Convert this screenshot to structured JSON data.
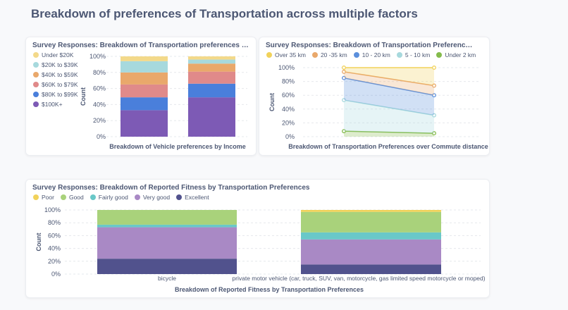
{
  "page": {
    "title": "Breakdown of preferences of Transportation across multiple factors"
  },
  "cards": {
    "income": {
      "title": "Survey Responses: Breakdown of Transportation preferences by Income"
    },
    "commute": {
      "title": "Survey Responses: Breakdown of Transportation Preferences over Commute distance"
    },
    "fitness": {
      "title": "Survey Responses: Breakdown of Reported Fitness by Transportation Preferences"
    }
  },
  "chart_data": [
    {
      "id": "income",
      "type": "bar",
      "stacked": true,
      "normalized": true,
      "title": "Survey Responses: Breakdown of Transportation preferences by Income",
      "xlabel": "Breakdown of Vehicle preferences by Income",
      "ylabel": "Count",
      "yticks": [
        "0%",
        "20%",
        "40%",
        "60%",
        "80%",
        "100%"
      ],
      "ylim": [
        0,
        100
      ],
      "legend_position": "left",
      "categories": [
        "",
        ""
      ],
      "series": [
        {
          "name": "$100K+",
          "color": "#7d5ab5",
          "values": [
            33,
            49
          ]
        },
        {
          "name": "$80K to $99K",
          "color": "#4a7fdb",
          "values": [
            16,
            17
          ]
        },
        {
          "name": "$60K to $79K",
          "color": "#e08a8a",
          "values": [
            16,
            15
          ]
        },
        {
          "name": "$40K to $59K",
          "color": "#e9a86b",
          "values": [
            15,
            10
          ]
        },
        {
          "name": "$20K to $39K",
          "color": "#a7d9dd",
          "values": [
            14,
            5
          ]
        },
        {
          "name": "Under $20K",
          "color": "#f3d98a",
          "values": [
            6,
            4
          ]
        }
      ],
      "legend_order": [
        "Under $20K",
        "$20K to $39K",
        "$40K to $59K",
        "$60K to $79K",
        "$80K to $99K",
        "$100K+"
      ]
    },
    {
      "id": "commute",
      "type": "area",
      "stacked": true,
      "normalized": true,
      "title": "Survey Responses: Breakdown of Transportation Preferences over Commute distance",
      "xlabel": "Breakdown of Transportation Preferences over Commute distance",
      "ylabel": "Count",
      "yticks": [
        "0%",
        "20%",
        "40%",
        "60%",
        "80%",
        "100%"
      ],
      "ylim": [
        0,
        100
      ],
      "legend_position": "top",
      "x": [
        "",
        ""
      ],
      "series": [
        {
          "name": "Under 2 km",
          "color": "#84bb4c",
          "values": [
            8,
            5
          ]
        },
        {
          "name": "5 - 10 km",
          "color": "#a7d9dd",
          "values": [
            45,
            26
          ]
        },
        {
          "name": "10 - 20 km",
          "color": "#5b8fdc",
          "values": [
            32,
            29
          ]
        },
        {
          "name": "20 -35 km",
          "color": "#e9a86b",
          "values": [
            9,
            14
          ]
        },
        {
          "name": "Over 35 km",
          "color": "#f1d25a",
          "values": [
            6,
            26
          ]
        }
      ],
      "legend_order": [
        "Over 35 km",
        "20 -35 km",
        "10 - 20 km",
        "5 - 10 km",
        "Under 2 km"
      ]
    },
    {
      "id": "fitness",
      "type": "bar",
      "stacked": true,
      "normalized": true,
      "title": "Survey Responses: Breakdown of Reported Fitness by Transportation Preferences",
      "xlabel": "Breakdown of Reported Fitness by Transportation Preferences",
      "ylabel": "Count",
      "yticks": [
        "0%",
        "20%",
        "40%",
        "60%",
        "80%",
        "100%"
      ],
      "ylim": [
        0,
        100
      ],
      "legend_position": "top",
      "categories": [
        "bicycle",
        "private motor vehicle (car, truck, SUV, van, motorcycle, gas limited speed motorcycle or moped)"
      ],
      "series": [
        {
          "name": "Excellent",
          "color": "#51528d",
          "values": [
            24,
            15
          ]
        },
        {
          "name": "Very good",
          "color": "#a989c5",
          "values": [
            49,
            39
          ]
        },
        {
          "name": "Fairly good",
          "color": "#69c8c8",
          "values": [
            4,
            11
          ]
        },
        {
          "name": "Good",
          "color": "#a9d27b",
          "values": [
            23,
            32
          ]
        },
        {
          "name": "Poor",
          "color": "#f1d25a",
          "values": [
            0,
            3
          ]
        }
      ],
      "legend_order": [
        "Poor",
        "Good",
        "Fairly good",
        "Very good",
        "Excellent"
      ]
    }
  ]
}
